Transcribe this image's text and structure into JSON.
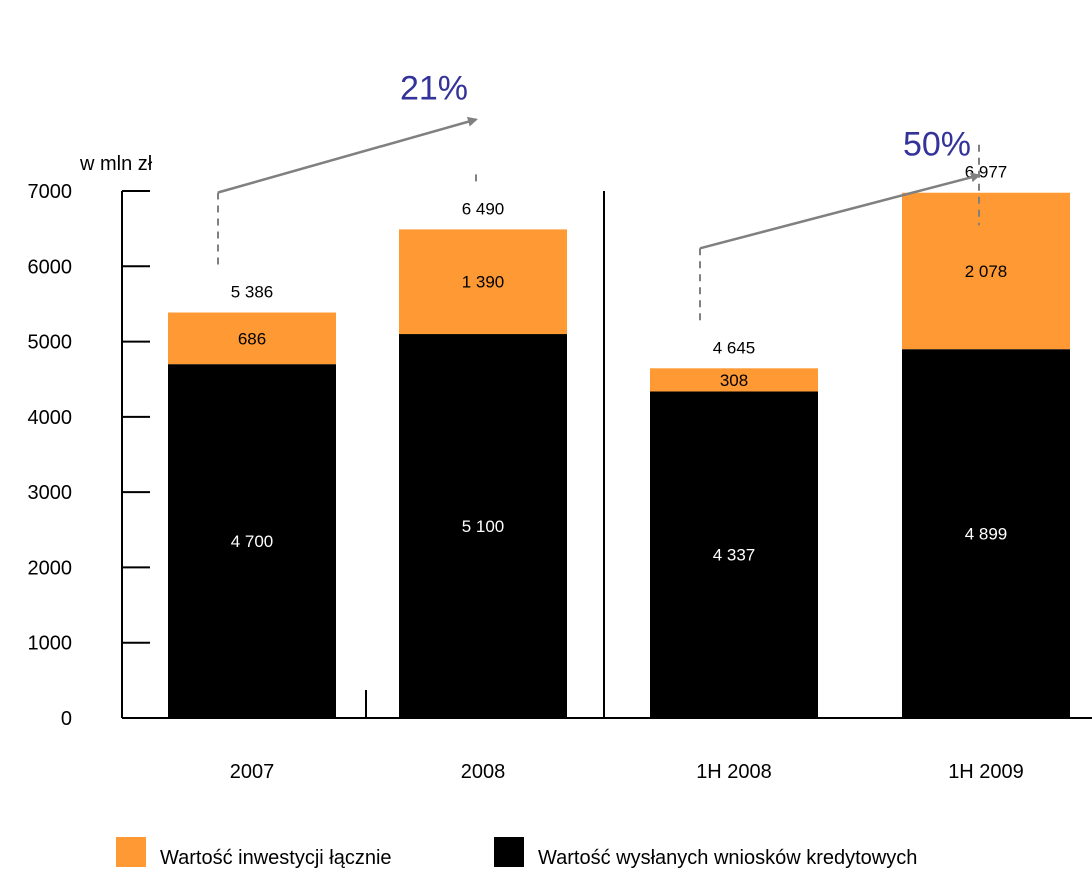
{
  "chart_data": {
    "type": "bar",
    "stacked": true,
    "unit_label": "w mln zł",
    "categories": [
      "2007",
      "2008",
      "1H 2008",
      "1H 2009"
    ],
    "series": [
      {
        "name": "Wartość wysłanych wniosków kredytowych",
        "values": [
          4700,
          5100,
          4337,
          4899
        ],
        "labels": [
          "4 700",
          "5 100",
          "4 337",
          "4 899"
        ],
        "color": "#000000"
      },
      {
        "name": "Wartość inwestycji łącznie",
        "values": [
          686,
          1390,
          308,
          2078
        ],
        "labels": [
          "686",
          "1 390",
          "308",
          "2 078"
        ],
        "color": "#FF9933"
      }
    ],
    "totals": [
      "5 386",
      "6 490",
      "4 645",
      "6 977"
    ],
    "growth": [
      {
        "label": "21%",
        "from": 0,
        "to": 1
      },
      {
        "label": "50%",
        "from": 2,
        "to": 3
      }
    ],
    "ylim": [
      0,
      7000
    ],
    "yticks": [
      0,
      1000,
      2000,
      3000,
      4000,
      5000,
      6000,
      7000
    ],
    "grid": false,
    "legend_position": "bottom",
    "colors": {
      "growth_text": "#333399",
      "arrow": "#808080",
      "axis": "#000000"
    }
  },
  "legend": {
    "items": [
      {
        "label": "Wartość inwestycji łącznie",
        "color": "#FF9933"
      },
      {
        "label": "Wartość wysłanych wniosków kredytowych",
        "color": "#000000"
      }
    ]
  }
}
